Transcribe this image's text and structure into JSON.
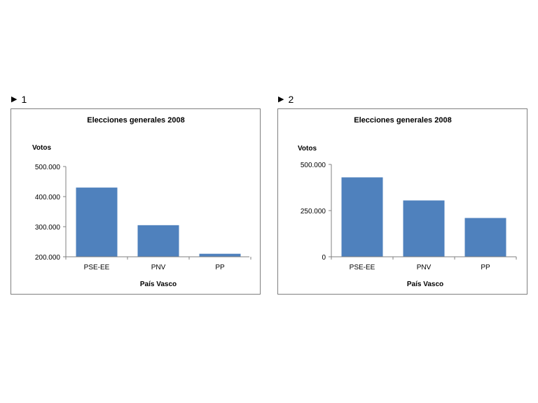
{
  "panels": [
    {
      "marker": "▶",
      "label": "1"
    },
    {
      "marker": "▶",
      "label": "2"
    }
  ],
  "colors": {
    "bar": "#4f81bd",
    "axis": "#808080",
    "border": "#7f7f7f"
  },
  "chart_data": [
    {
      "type": "bar",
      "title": "Elecciones generales 2008",
      "ylabel": "Votos",
      "xlabel": "País Vasco",
      "categories": [
        "PSE-EE",
        "PNV",
        "PP"
      ],
      "values": [
        430000,
        305000,
        210000
      ],
      "ylim": [
        200000,
        500000
      ],
      "yticks": [
        200000,
        300000,
        400000,
        500000
      ],
      "ytick_labels": [
        "200.000",
        "300.000",
        "400.000",
        "500.000"
      ],
      "grid": false,
      "legend": "none"
    },
    {
      "type": "bar",
      "title": "Elecciones generales 2008",
      "ylabel": "Votos",
      "xlabel": "País Vasco",
      "categories": [
        "PSE-EE",
        "PNV",
        "PP"
      ],
      "values": [
        430000,
        305000,
        210000
      ],
      "ylim": [
        0,
        500000
      ],
      "yticks": [
        0,
        250000,
        500000
      ],
      "ytick_labels": [
        "0",
        "250.000",
        "500.000"
      ],
      "grid": false,
      "legend": "none"
    }
  ]
}
